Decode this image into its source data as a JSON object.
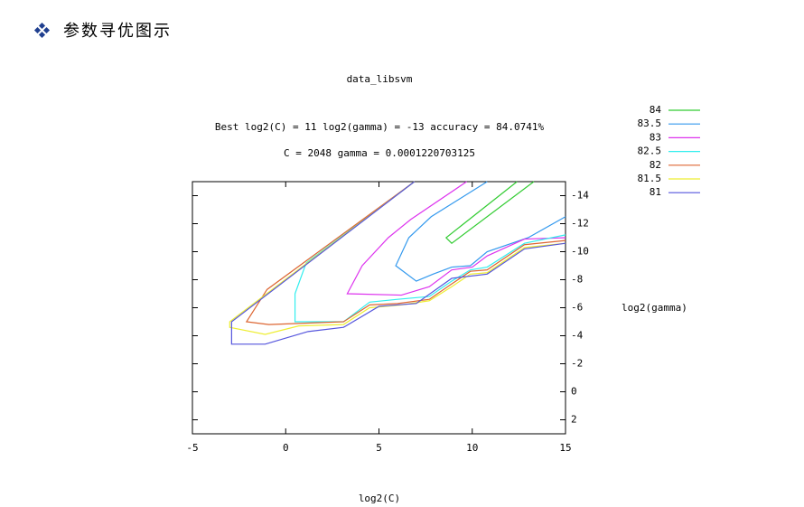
{
  "heading": "参数寻优图示",
  "chart_data": {
    "type": "contour",
    "title": "data_libsvm",
    "subtitle": [
      "Best log2(C) = 11  log2(gamma) = -13  accuracy = 84.0741%",
      "C = 2048  gamma = 0.0001220703125"
    ],
    "x_label": "log2(C)",
    "y_label": "log2(gamma)",
    "xlim": [
      -5,
      15
    ],
    "xticks": [
      -5,
      0,
      5,
      10,
      15
    ],
    "ylim": [
      3,
      -15
    ],
    "yticks": [
      -14,
      -12,
      -10,
      -8,
      -6,
      -4,
      -2,
      0,
      2
    ],
    "series": [
      {
        "name": "84",
        "color": "#33cc33",
        "x": [
          12.4,
          8.6,
          8.9,
          13.3
        ],
        "y": [
          -15,
          -11,
          -10.6,
          -15
        ]
      },
      {
        "name": "83.5",
        "color": "#3399ee",
        "x": [
          10.8,
          7.8,
          6.6,
          5.9,
          7.0,
          7.9,
          8.9,
          9.9,
          10.8,
          13.0,
          15.0
        ],
        "y": [
          -15,
          -12.5,
          -11.0,
          -9.0,
          -7.9,
          -8.4,
          -8.9,
          -9.0,
          -10.0,
          -11.0,
          -12.5
        ]
      },
      {
        "name": "83",
        "color": "#dd33ee",
        "x": [
          9.7,
          6.7,
          5.5,
          4.1,
          3.3,
          6.2,
          7.7,
          8.9,
          10.0,
          10.8,
          12.8,
          15.0
        ],
        "y": [
          -15,
          -12.3,
          -11.0,
          -9.0,
          -7.0,
          -6.9,
          -7.5,
          -8.7,
          -8.9,
          -9.7,
          -10.9,
          -11.0
        ]
      },
      {
        "name": "82.5",
        "color": "#33eeee",
        "x": [
          6.9,
          1.1,
          0.5,
          0.5,
          3.1,
          4.5,
          6.0,
          7.7,
          8.9,
          9.9,
          10.8,
          12.8,
          15.0
        ],
        "y": [
          -15,
          -9.2,
          -7.0,
          -5.0,
          -5.0,
          -6.4,
          -6.6,
          -6.8,
          -7.9,
          -8.7,
          -8.9,
          -10.6,
          -11.2
        ]
      },
      {
        "name": "82",
        "color": "#dd6633",
        "x": [
          6.9,
          -1.0,
          -2.1,
          -0.9,
          3.1,
          4.5,
          6.0,
          7.7,
          8.9,
          9.9,
          10.8,
          12.8,
          15.0
        ],
        "y": [
          -15,
          -7.3,
          -5.0,
          -4.8,
          -5.0,
          -6.2,
          -6.3,
          -6.6,
          -7.7,
          -8.6,
          -8.7,
          -10.5,
          -10.8
        ]
      },
      {
        "name": "81.5",
        "color": "#eeee33",
        "x": [
          6.9,
          -3.0,
          -3.0,
          -1.1,
          0.7,
          3.1,
          4.5,
          6.2,
          7.7,
          8.9,
          9.9,
          10.8,
          12.8,
          15.0
        ],
        "y": [
          -15,
          -5.0,
          -4.6,
          -4.1,
          -4.7,
          -4.8,
          -6.0,
          -6.2,
          -6.5,
          -7.5,
          -8.4,
          -8.5,
          -10.3,
          -10.6
        ]
      },
      {
        "name": "81",
        "color": "#5555dd",
        "x": [
          6.9,
          -2.9,
          -2.9,
          -1.1,
          1.2,
          3.1,
          5.0,
          7.0,
          8.9,
          10.8,
          12.8,
          15.0
        ],
        "y": [
          -15,
          -5.0,
          -3.4,
          -3.4,
          -4.3,
          -4.6,
          -6.1,
          -6.3,
          -8.1,
          -8.4,
          -10.2,
          -10.6
        ]
      }
    ]
  }
}
